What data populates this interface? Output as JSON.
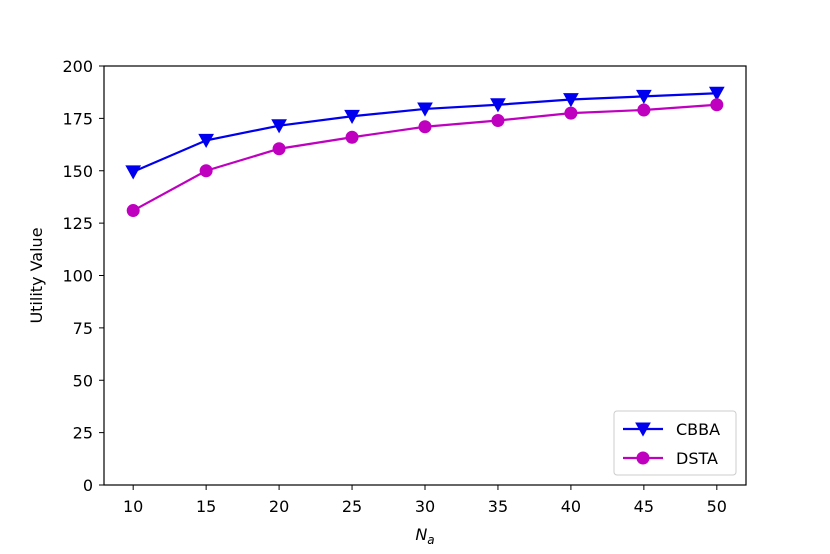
{
  "chart_data": {
    "type": "line",
    "title": "",
    "xlabel": "N",
    "xlabel_sub": "a",
    "ylabel": "Utility Value",
    "x": [
      10,
      15,
      20,
      25,
      30,
      35,
      40,
      45,
      50
    ],
    "xlim": [
      8,
      52
    ],
    "ylim": [
      0,
      200
    ],
    "xticks": [
      "10",
      "15",
      "20",
      "25",
      "30",
      "35",
      "40",
      "45",
      "50"
    ],
    "yticks": [
      "0",
      "25",
      "50",
      "75",
      "100",
      "125",
      "150",
      "175",
      "200"
    ],
    "grid": false,
    "legend_position": "lower-right",
    "series": [
      {
        "name": "CBBA",
        "color": "#0000ee",
        "marker": "triangle-down",
        "values": [
          149.5,
          164.5,
          171.5,
          176,
          179.5,
          181.5,
          184,
          185.5,
          187
        ]
      },
      {
        "name": "DSTA",
        "color": "#bf00bf",
        "marker": "circle",
        "values": [
          131,
          150,
          160.5,
          166,
          171,
          174,
          177.5,
          179,
          181.5
        ]
      }
    ]
  }
}
